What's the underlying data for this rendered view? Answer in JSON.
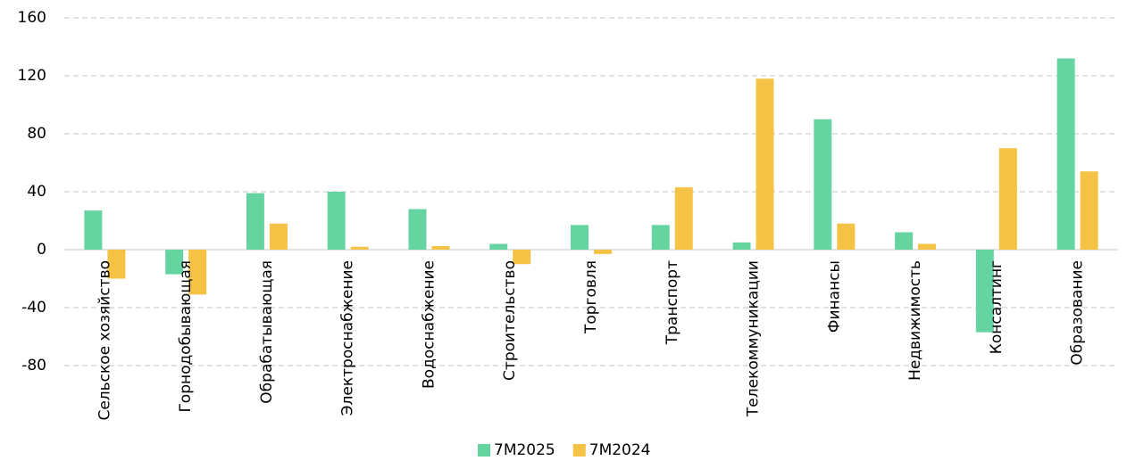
{
  "chart_data": {
    "type": "bar",
    "categories": [
      "Сельское хозяйство",
      "Горнодобывающая",
      "Обрабатывающая",
      "Электроснабжение",
      "Водоснабжение",
      "Строительство",
      "Торговля",
      "Транспорт",
      "Телекоммуникации",
      "Финансы",
      "Недвижимость",
      "Консалтинг",
      "Образование"
    ],
    "series": [
      {
        "name": "7M2025",
        "color": "#66d4a0",
        "values": [
          27,
          -17,
          39,
          40,
          28,
          4,
          17,
          17,
          5,
          90,
          12,
          -57,
          132
        ]
      },
      {
        "name": "7M2024",
        "color": "#f4c244",
        "values": [
          -20,
          -31,
          18,
          2,
          2.5,
          -10,
          -3,
          43,
          118,
          18,
          4,
          70,
          54
        ]
      }
    ],
    "ylim": [
      -80,
      160
    ],
    "yticks": [
      -80,
      -40,
      0,
      40,
      80,
      120,
      160
    ],
    "grid": true,
    "legend": "bottom"
  }
}
